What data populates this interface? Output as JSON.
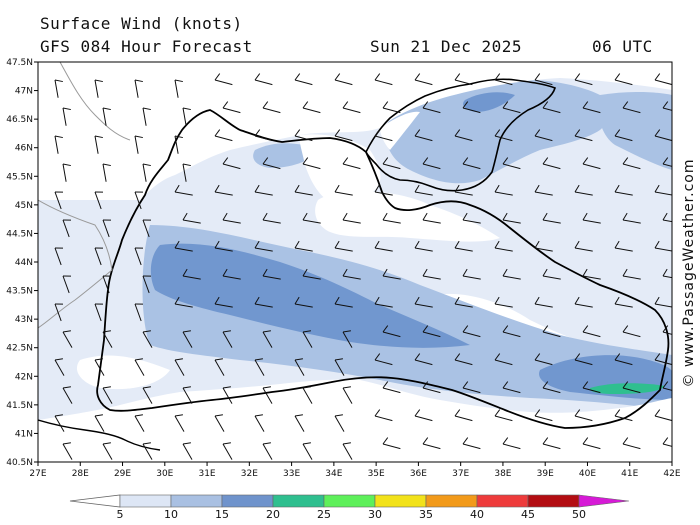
{
  "header": {
    "line1": "Surface Wind (knots)",
    "model": "GFS 084 Hour Forecast",
    "date": "Sun 21 Dec 2025",
    "time": "06 UTC"
  },
  "credit": "© www.PassageWeather.com",
  "axes": {
    "lon_labels": [
      "27E",
      "28E",
      "29E",
      "30E",
      "31E",
      "32E",
      "33E",
      "34E",
      "35E",
      "36E",
      "37E",
      "38E",
      "39E",
      "40E",
      "41E",
      "42E"
    ],
    "lat_labels": [
      "47.5N",
      "47N",
      "46.5N",
      "46N",
      "45.5N",
      "45N",
      "44.5N",
      "44N",
      "43.5N",
      "43N",
      "42.5N",
      "42N",
      "41.5N",
      "41N",
      "40.5N"
    ]
  },
  "colorbar": {
    "labels": [
      "5",
      "10",
      "15",
      "20",
      "25",
      "30",
      "35",
      "40",
      "45",
      "50"
    ],
    "colors": [
      "#dde6f5",
      "#a9c0e2",
      "#6f93cc",
      "#2fbf8f",
      "#5ef05a",
      "#f2e21a",
      "#f29a1a",
      "#ee3b3b",
      "#b30d12",
      "#d61ad6"
    ]
  },
  "colors": {
    "sea_base": "#e4ebf7",
    "band_10": "#aac2e4",
    "band_15": "#7197cf",
    "band_20": "#2fbf8f",
    "land": "#ffffff",
    "coast": "#000000",
    "border": "#9a9a9a"
  }
}
